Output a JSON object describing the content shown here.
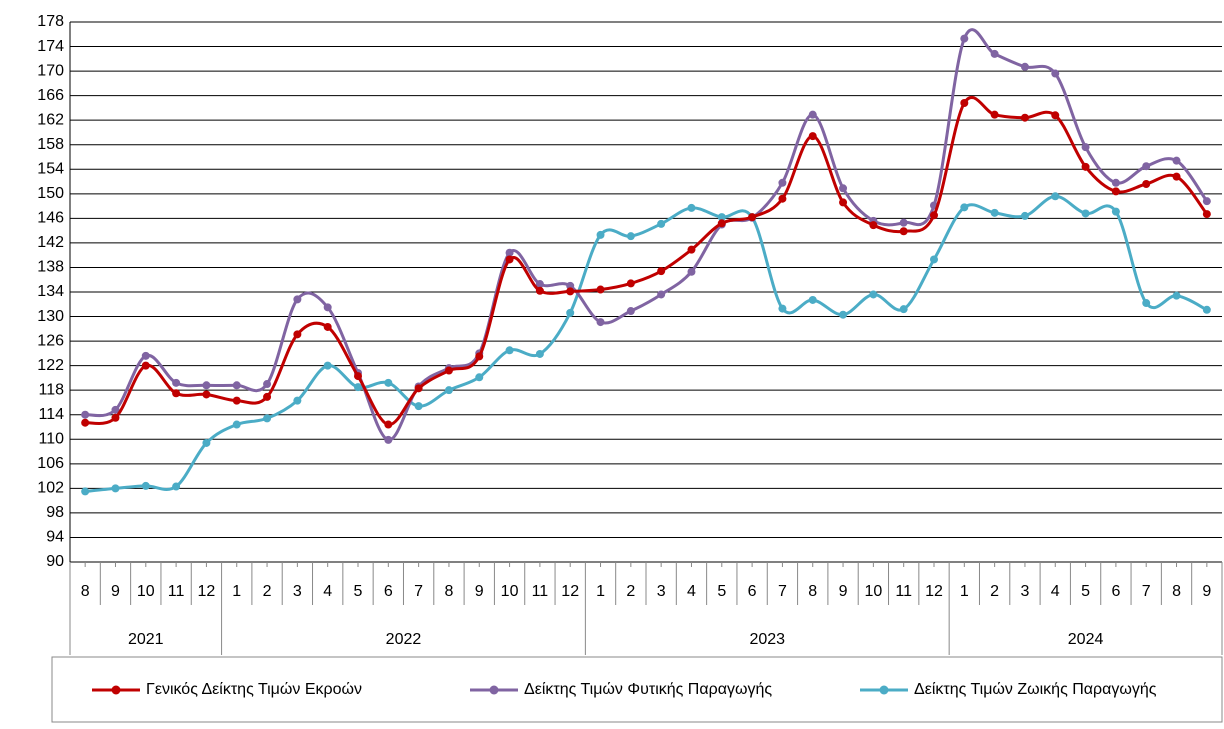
{
  "chart_data": {
    "type": "line",
    "groups": [
      {
        "label": "2021",
        "categories": [
          "8",
          "9",
          "10",
          "11",
          "12"
        ]
      },
      {
        "label": "2022",
        "categories": [
          "1",
          "2",
          "3",
          "4",
          "5",
          "6",
          "7",
          "8",
          "9",
          "10",
          "11",
          "12"
        ]
      },
      {
        "label": "2023",
        "categories": [
          "1",
          "2",
          "3",
          "4",
          "5",
          "6",
          "7",
          "8",
          "9",
          "10",
          "11",
          "12"
        ]
      },
      {
        "label": "2024",
        "categories": [
          "1",
          "2",
          "3",
          "4",
          "5",
          "6",
          "7",
          "8",
          "9"
        ]
      }
    ],
    "series": [
      {
        "name": "Γενικός Δείκτης Τιμών Εκροών",
        "color": "#c00000",
        "values": [
          112.7,
          113.5,
          122,
          117.5,
          117.3,
          116.3,
          116.9,
          127.1,
          128.3,
          120.3,
          112.4,
          118.3,
          121.2,
          123.5,
          139.3,
          134.2,
          134.1,
          134.4,
          135.4,
          137.4,
          140.9,
          145.2,
          146.2,
          149.2,
          159.4,
          148.6,
          144.9,
          143.9,
          146.5,
          164.8,
          162.9,
          162.4,
          162.8,
          154.4,
          150.4,
          151.6,
          152.8,
          146.7
        ]
      },
      {
        "name": "Δείκτης Τιμών Φυτικής Παραγωγής",
        "color": "#8064a2",
        "values": [
          114,
          114.8,
          123.6,
          119.2,
          118.8,
          118.8,
          119,
          132.8,
          131.5,
          120.8,
          109.9,
          118.6,
          121.6,
          124,
          140.4,
          135.3,
          135,
          129.1,
          130.9,
          133.6,
          137.3,
          145,
          146.1,
          151.8,
          162.9,
          150.9,
          145.6,
          145.3,
          148.1,
          175.3,
          172.8,
          170.7,
          169.6,
          157.6,
          151.8,
          154.5,
          155.4,
          148.8
        ]
      },
      {
        "name": "Δείκτης Τιμών Ζωικής Παραγωγής",
        "color": "#4bacc6",
        "values": [
          101.5,
          102,
          102.4,
          102.3,
          109.4,
          112.4,
          113.4,
          116.3,
          122,
          118.5,
          119.2,
          115.4,
          118,
          120.1,
          124.5,
          123.9,
          130.6,
          143.3,
          143.1,
          145.1,
          147.7,
          146.2,
          146.2,
          131.3,
          132.7,
          130.3,
          133.6,
          131.2,
          139.3,
          147.8,
          146.9,
          146.4,
          149.6,
          146.8,
          147.1,
          132.2,
          133.4,
          131.1
        ]
      }
    ],
    "ylim": [
      90,
      178
    ],
    "yticks": [
      90,
      94,
      98,
      102,
      106,
      110,
      114,
      118,
      122,
      126,
      130,
      134,
      138,
      142,
      146,
      150,
      154,
      158,
      162,
      166,
      170,
      174,
      178
    ],
    "grid": true,
    "legend": "bottom"
  }
}
